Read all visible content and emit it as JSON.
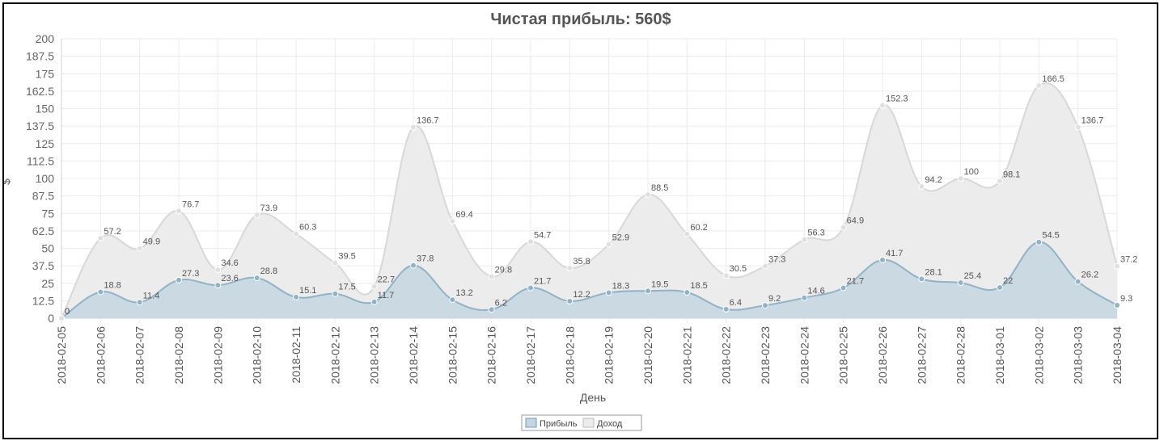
{
  "chart_data": {
    "type": "area",
    "title": "Чистая прибыль: 560$",
    "xlabel": "День",
    "ylabel": "$",
    "ylim": [
      0,
      200
    ],
    "yticks": [
      "0",
      "12.5",
      "25",
      "37.5",
      "50",
      "62.5",
      "75",
      "87.5",
      "100",
      "112.5",
      "125",
      "137.5",
      "150",
      "162.5",
      "175",
      "187.5",
      "200"
    ],
    "grid": true,
    "legend_position": "bottom-center",
    "categories": [
      "2018-02-05",
      "2018-02-06",
      "2018-02-07",
      "2018-02-08",
      "2018-02-09",
      "2018-02-10",
      "2018-02-11",
      "2018-02-12",
      "2018-02-13",
      "2018-02-14",
      "2018-02-15",
      "2018-02-16",
      "2018-02-17",
      "2018-02-18",
      "2018-02-19",
      "2018-02-20",
      "2018-02-21",
      "2018-02-22",
      "2018-02-23",
      "2018-02-24",
      "2018-02-25",
      "2018-02-26",
      "2018-02-27",
      "2018-02-28",
      "2018-03-01",
      "2018-03-02",
      "2018-03-03",
      "2018-03-04"
    ],
    "series": [
      {
        "name": "Прибыль",
        "color": "#8fb3c8",
        "fill": "#c4d6e1",
        "values": [
          0,
          18.8,
          11.4,
          27.3,
          23.6,
          28.8,
          15.1,
          17.5,
          11.7,
          37.8,
          13.2,
          6.2,
          21.7,
          12.2,
          18.3,
          19.5,
          18.5,
          6.4,
          9.2,
          14.6,
          21.7,
          41.7,
          28.1,
          25.4,
          22,
          54.5,
          26.2,
          9.3
        ]
      },
      {
        "name": "Доход",
        "color": "#d8d8d8",
        "fill": "#ececec",
        "values": [
          0,
          57.2,
          49.9,
          76.7,
          34.6,
          73.9,
          60.3,
          39.5,
          22.7,
          136.7,
          69.4,
          29.8,
          54.7,
          35.8,
          52.9,
          88.5,
          60.2,
          30.5,
          37.3,
          56.3,
          64.9,
          152.3,
          94.2,
          100,
          98.1,
          166.5,
          136.7,
          37.2
        ]
      }
    ]
  }
}
